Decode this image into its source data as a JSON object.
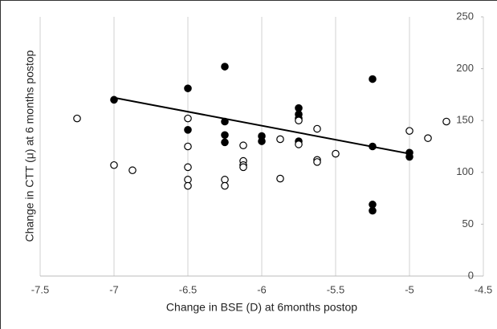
{
  "chart_data": {
    "type": "scatter",
    "x_label": "Change in BSE (D) at  6months postop",
    "y_label": "Change in CTT (μ) at 6 months postop",
    "xlim": [
      -7.5,
      -4.5
    ],
    "xticks": [
      -7.5,
      -7,
      -6.5,
      -6,
      -5.5,
      -5,
      -4.5
    ],
    "ylim": [
      0,
      250
    ],
    "yticks": [
      0,
      50,
      100,
      150,
      200,
      250
    ],
    "grid": true,
    "series": [
      {
        "color": "#000000",
        "marker": "filled",
        "x": [
          -7,
          -6.5,
          -6.5,
          -6.25,
          -6.25,
          -6.25,
          -6.25,
          -6,
          -6,
          -5.75,
          -5.75,
          -5.75,
          -5.75,
          -5.25,
          -5.25,
          -5.25,
          -5.25,
          -5,
          -5
        ],
        "values": [
          170,
          181,
          141,
          202,
          149,
          136,
          129,
          135,
          130,
          162,
          156,
          152,
          130,
          190,
          125,
          69,
          63,
          119,
          115
        ]
      },
      {
        "color": "#000000",
        "marker": "open",
        "x": [
          -7.25,
          -7,
          -6.875,
          -6.5,
          -6.5,
          -6.5,
          -6.5,
          -6.5,
          -6.25,
          -6.25,
          -6.125,
          -6.125,
          -6.125,
          -6.125,
          -5.875,
          -5.875,
          -5.75,
          -5.75,
          -5.625,
          -5.625,
          -5.625,
          -5.5,
          -5,
          -4.875,
          -4.75
        ],
        "values": [
          152,
          107,
          102,
          152,
          125,
          105,
          93,
          87,
          93,
          87,
          126,
          111,
          107,
          105,
          132,
          94,
          150,
          127,
          142,
          112,
          110,
          118,
          140,
          133,
          149
        ]
      }
    ],
    "trendline": {
      "color": "#000000",
      "x": [
        -7,
        -5
      ],
      "values": [
        172,
        118
      ]
    }
  }
}
